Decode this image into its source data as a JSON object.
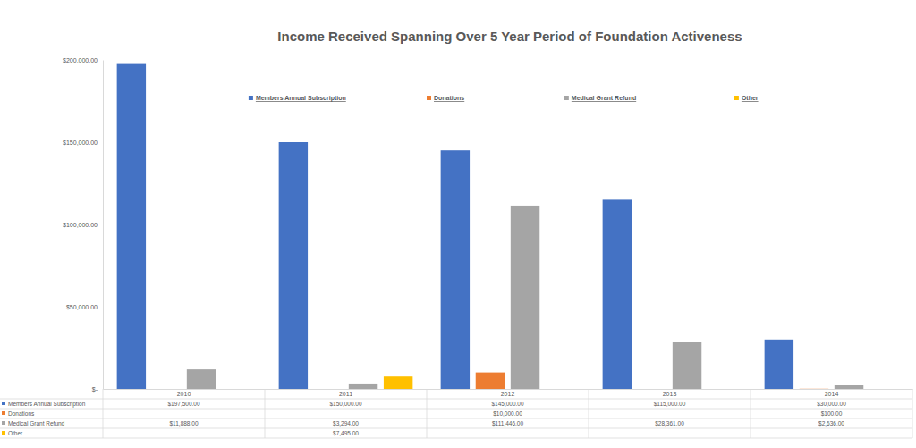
{
  "chart_data": {
    "type": "bar",
    "title": "Income Received Spanning Over 5 Year Period of Foundation Activeness",
    "categories": [
      "2010",
      "2011",
      "2012",
      "2013",
      "2014"
    ],
    "series": [
      {
        "name": "Members Annual Subscription",
        "color": "#4472c4",
        "values": [
          197500,
          150000,
          145000,
          115000,
          30000
        ],
        "value_labels": [
          "$197,500.00",
          "$150,000.00",
          "$145,000.00",
          "$115,000.00",
          "$30,000.00"
        ]
      },
      {
        "name": "Donations",
        "color": "#ed7d31",
        "values": [
          null,
          null,
          10000,
          null,
          100
        ],
        "value_labels": [
          null,
          null,
          "$10,000.00",
          null,
          "$100.00"
        ]
      },
      {
        "name": "Medical Grant Refund",
        "color": "#a5a5a5",
        "values": [
          11888,
          3294,
          111446,
          28361,
          2636
        ],
        "value_labels": [
          "$11,888.00",
          "$3,294.00",
          "$111,446.00",
          "$28,361.00",
          "$2,636.00"
        ]
      },
      {
        "name": "Other",
        "color": "#ffc000",
        "values": [
          null,
          7495,
          null,
          null,
          null
        ],
        "value_labels": [
          null,
          "$7,495.00",
          null,
          null,
          null
        ]
      }
    ],
    "ylim": [
      0,
      200000
    ],
    "yticks": [
      {
        "value": 0,
        "label": "$-"
      },
      {
        "value": 50000,
        "label": "$50,000.00"
      },
      {
        "value": 100000,
        "label": "$100,000.00"
      },
      {
        "value": 150000,
        "label": "$150,000.00"
      },
      {
        "value": 200000,
        "label": "$200,000.00"
      }
    ],
    "grid": false,
    "legend": "top"
  }
}
